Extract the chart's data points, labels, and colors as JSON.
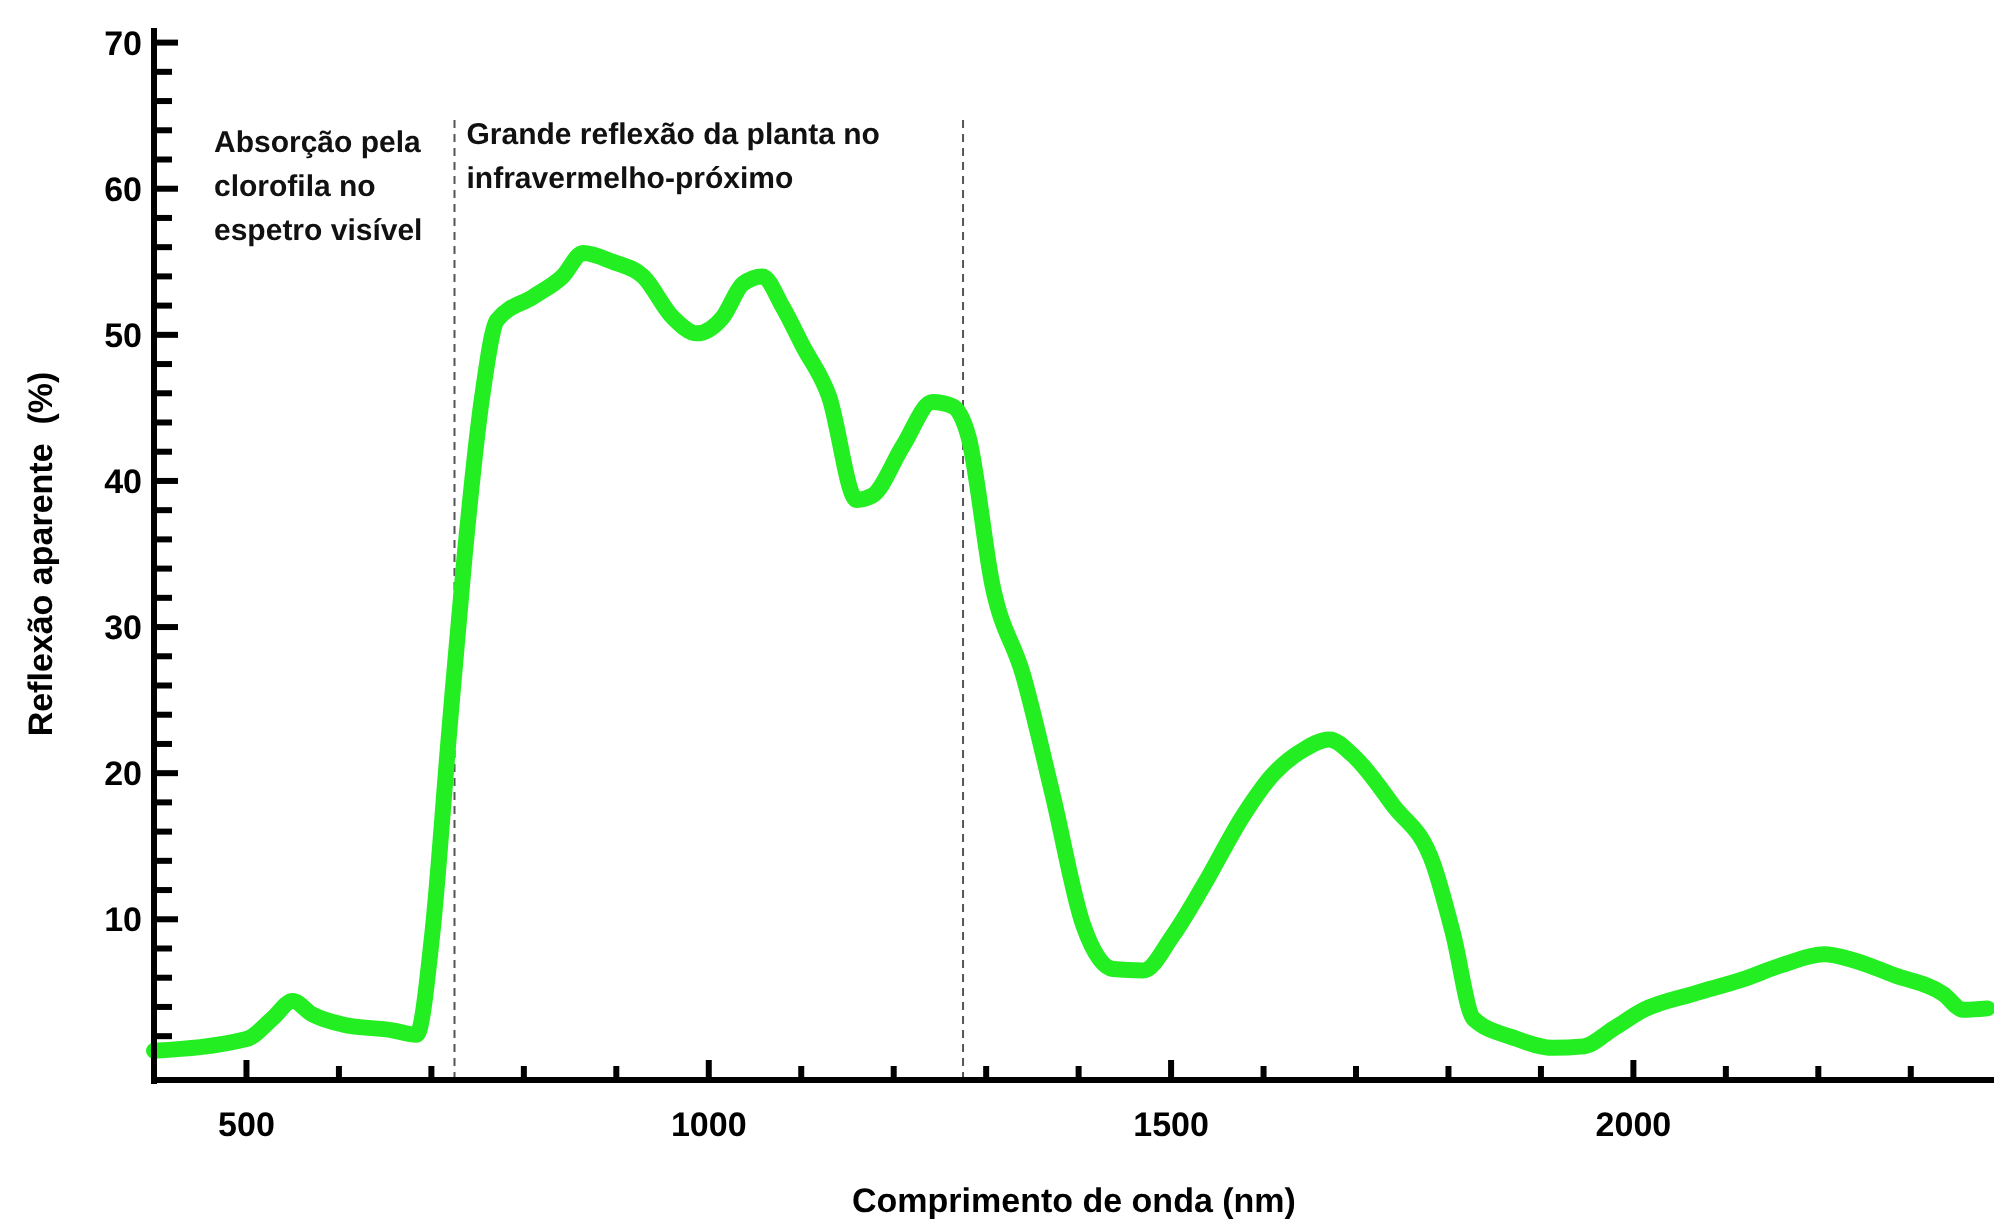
{
  "chart_data": {
    "type": "line",
    "xlabel": "Comprimento de onda (nm)",
    "ylabel": "Reflexão aparente  (%)",
    "x": [
      400,
      500,
      528,
      550,
      571,
      604,
      658,
      684,
      701,
      719,
      736,
      755,
      771,
      810,
      842,
      864,
      896,
      929,
      961,
      987,
      1015,
      1037,
      1058,
      1080,
      1102,
      1130,
      1160,
      1177,
      1210,
      1242,
      1264,
      1281,
      1307,
      1340,
      1372,
      1405,
      1437,
      1470,
      1502,
      1535,
      1578,
      1610,
      1643,
      1671,
      1697,
      1740,
      1784,
      1805,
      1827,
      1870,
      1913,
      1946,
      1978,
      2011,
      2065,
      2119,
      2162,
      2206,
      2238,
      2281,
      2335,
      2357,
      2383
    ],
    "series": [
      {
        "color": "#22ee22",
        "values": [
          1.0,
          1.8,
          3.2,
          4.4,
          3.5,
          2.8,
          2.4,
          2.1,
          9,
          22.6,
          34.9,
          45.8,
          51,
          52.6,
          54,
          55.6,
          55,
          54,
          51.2,
          50.1,
          51.2,
          53.5,
          54,
          51.9,
          49.2,
          45.8,
          38.7,
          39,
          42.4,
          45.4,
          45.1,
          43,
          32.8,
          26.7,
          18.5,
          9.6,
          6.6,
          6.5,
          8.9,
          12.3,
          17.1,
          19.9,
          21.6,
          22.3,
          21.2,
          17.8,
          13.7,
          9,
          3.2,
          1.9,
          1.2,
          1.3,
          2.5,
          3.8,
          4.9,
          5.9,
          6.9,
          7.6,
          7.2,
          6.2,
          4.9,
          3.8,
          3.9
        ]
      }
    ],
    "xlim": [
      400,
      2390
    ],
    "xticks": [
      500,
      {
        "value": 600,
        "label": null
      },
      {
        "value": 700,
        "label": null
      },
      {
        "value": 800,
        "label": null
      },
      {
        "value": 900,
        "label": null
      },
      1000,
      {
        "value": 1100,
        "label": null
      },
      {
        "value": 1200,
        "label": null
      },
      {
        "value": 1300,
        "label": null
      },
      {
        "value": 1400,
        "label": null
      },
      1500,
      {
        "value": 1600,
        "label": null
      },
      {
        "value": 1700,
        "label": null
      },
      {
        "value": 1800,
        "label": null
      },
      {
        "value": 1900,
        "label": null
      },
      2000,
      {
        "value": 2100,
        "label": null
      },
      {
        "value": 2200,
        "label": null
      },
      {
        "value": 2300,
        "label": null
      }
    ],
    "ylim": [
      -1,
      71
    ],
    "yticks": [
      {
        "value": 2,
        "label": null
      },
      {
        "value": 4,
        "label": null
      },
      {
        "value": 6,
        "label": null
      },
      {
        "value": 8,
        "label": null
      },
      10,
      {
        "value": 12,
        "label": null
      },
      {
        "value": 14,
        "label": null
      },
      {
        "value": 16,
        "label": null
      },
      {
        "value": 18,
        "label": null
      },
      20,
      {
        "value": 22,
        "label": null
      },
      {
        "value": 24,
        "label": null
      },
      {
        "value": 26,
        "label": null
      },
      {
        "value": 28,
        "label": null
      },
      30,
      {
        "value": 32,
        "label": null
      },
      {
        "value": 34,
        "label": null
      },
      {
        "value": 36,
        "label": null
      },
      {
        "value": 38,
        "label": null
      },
      40,
      {
        "value": 42,
        "label": null
      },
      {
        "value": 44,
        "label": null
      },
      {
        "value": 46,
        "label": null
      },
      {
        "value": 48,
        "label": null
      },
      50,
      {
        "value": 52,
        "label": null
      },
      {
        "value": 54,
        "label": null
      },
      {
        "value": 56,
        "label": null
      },
      {
        "value": 58,
        "label": null
      },
      60,
      {
        "value": 62,
        "label": null
      },
      {
        "value": 64,
        "label": null
      },
      {
        "value": 66,
        "label": null
      },
      {
        "value": 68,
        "label": null
      },
      70
    ],
    "ref_lines": [
      {
        "axis": "x",
        "value": 725,
        "color": "#555555",
        "line_style": "dashed"
      },
      {
        "axis": "x",
        "value": 1275,
        "color": "#555555",
        "line_style": "dashed"
      }
    ],
    "annotations": [
      "Absorção pela\nclorofila no\nespetro visível",
      "Grande reflexão da planta no\ninfravermelho-próximo"
    ],
    "grid": false,
    "marker": "none",
    "line_style": "solid"
  }
}
